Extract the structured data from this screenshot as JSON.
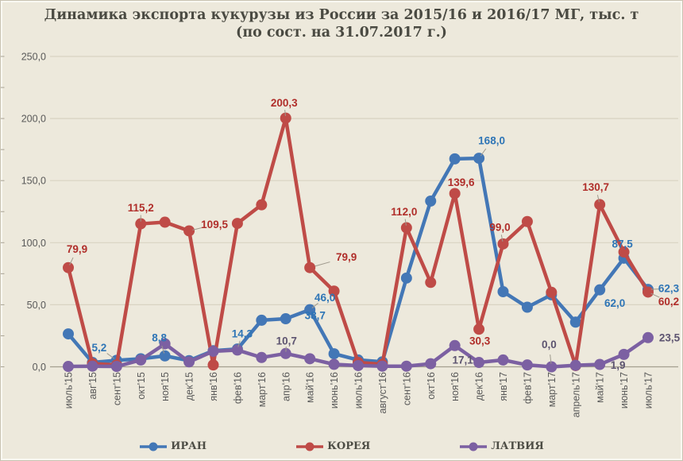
{
  "title": {
    "line1": "Динамика экспорта кукурузы из России за  2015/16 и 2016/17 МГ, тыс. т",
    "line2": "(по сост.  на 31.07.2017 г.)"
  },
  "colors": {
    "background": "#EDE9DC",
    "gridline": "#d8d3c2",
    "axis_line": "#a49f90",
    "tick_text": "#595959",
    "title_text": "#4a4a42",
    "leader_line": "#9e998c"
  },
  "chart_data": {
    "type": "line",
    "title": "Динамика экспорта кукурузы из России за 2015/16 и 2016/17 МГ, тыс. т (по сост. на 31.07.2017 г.)",
    "xlabel": "",
    "ylabel": "",
    "ylim": [
      0,
      250
    ],
    "ytick_step": 50,
    "yticks": [
      "0,0",
      "50,0",
      "100,0",
      "150,0",
      "200,0",
      "250,0"
    ],
    "grid": true,
    "legend_position": "bottom",
    "categories": [
      "июль'15",
      "авг'15",
      "сент'15",
      "окт'15",
      "ноя'15",
      "дек'15",
      "янв'16",
      "фев'16",
      "март'16",
      "апр'16",
      "май'16",
      "июнь'16",
      "июль'16",
      "август'16",
      "сент'16",
      "окт'16",
      "ноя'16",
      "дек'16",
      "янв'17",
      "фев'17",
      "март'17",
      "апрель'17",
      "май'17",
      "июнь'17",
      "июль'17"
    ],
    "series": [
      {
        "id": "iran",
        "name": "ИРАН",
        "color": "#4377B6",
        "label_color": "#2E75B6",
        "values": [
          26.5,
          3.5,
          5.2,
          6.5,
          8.8,
          5.0,
          13.0,
          14.3,
          37.5,
          38.7,
          46.0,
          10.5,
          5.5,
          4.0,
          71.5,
          133.5,
          167.5,
          168.0,
          60.5,
          48.0,
          58.0,
          36.0,
          62.0,
          87.5,
          62.3
        ],
        "labels": [
          {
            "i": 2,
            "text": "5,2",
            "dx": -22,
            "dy": -16,
            "leader": true
          },
          {
            "i": 4,
            "text": "8,8",
            "dx": -7,
            "dy": -23,
            "leader": true
          },
          {
            "i": 7,
            "text": "14,3",
            "dx": 6,
            "dy": -19,
            "leader": true
          },
          {
            "i": 9,
            "text": "38,7",
            "dx": 37,
            "dy": -4,
            "leader": false
          },
          {
            "i": 10,
            "text": "46,0",
            "dx": 19,
            "dy": -15,
            "leader": true
          },
          {
            "i": 17,
            "text": "168,0",
            "dx": 16,
            "dy": -22,
            "leader": true
          },
          {
            "i": 22,
            "text": "62,0",
            "dx": 19,
            "dy": 17,
            "leader": false
          },
          {
            "i": 23,
            "text": "87,5",
            "dx": -2,
            "dy": -18,
            "leader": false
          },
          {
            "i": 24,
            "text": "62,3",
            "dx": 26,
            "dy": -1,
            "leader": true
          }
        ]
      },
      {
        "id": "korea",
        "name": "КОРЕЯ",
        "color": "#BF4B47",
        "label_color": "#B02E2A",
        "values": [
          79.9,
          2.5,
          1.5,
          115.2,
          116.5,
          109.5,
          1.5,
          115.5,
          130.5,
          200.3,
          79.9,
          61.0,
          3.5,
          2.0,
          112.0,
          68.0,
          139.6,
          30.3,
          99.0,
          117.0,
          60.0,
          1.0,
          130.7,
          92.5,
          60.2
        ],
        "labels": [
          {
            "i": 0,
            "text": "79,9",
            "dx": 11,
            "dy": -23,
            "leader": true
          },
          {
            "i": 3,
            "text": "115,2",
            "dx": 0,
            "dy": -20,
            "leader": true
          },
          {
            "i": 5,
            "text": "109,5",
            "dx": 32,
            "dy": -8,
            "leader": true
          },
          {
            "i": 9,
            "text": "200,3",
            "dx": -2,
            "dy": -19,
            "leader": true
          },
          {
            "i": 10,
            "text": "79,9",
            "dx": 46,
            "dy": -13,
            "leader": true
          },
          {
            "i": 14,
            "text": "112,0",
            "dx": -3,
            "dy": -20,
            "leader": true
          },
          {
            "i": 16,
            "text": "139,6",
            "dx": 8,
            "dy": -14,
            "leader": false
          },
          {
            "i": 17,
            "text": "30,3",
            "dx": 1,
            "dy": 15,
            "leader": false
          },
          {
            "i": 18,
            "text": "99,0",
            "dx": -4,
            "dy": -21,
            "leader": true
          },
          {
            "i": 22,
            "text": "130,7",
            "dx": -5,
            "dy": -22,
            "leader": true
          },
          {
            "i": 24,
            "text": "60,2",
            "dx": 26,
            "dy": 12,
            "leader": true
          }
        ]
      },
      {
        "id": "latvia",
        "name": "ЛАТВИЯ",
        "color": "#7C60A2",
        "label_color": "#5D5470",
        "values": [
          0.3,
          0.5,
          0.3,
          5.5,
          18.5,
          4.0,
          12.5,
          13.5,
          7.5,
          10.7,
          6.5,
          2.0,
          1.0,
          0.5,
          0.5,
          2.5,
          17.1,
          3.5,
          5.5,
          1.5,
          0.0,
          1.2,
          1.9,
          10.0,
          23.5
        ],
        "labels": [
          {
            "i": 9,
            "text": "10,7",
            "dx": 1,
            "dy": -16,
            "leader": true
          },
          {
            "i": 16,
            "text": "17,1",
            "dx": 10,
            "dy": 18,
            "leader": false
          },
          {
            "i": 20,
            "text": "0,0",
            "dx": -3,
            "dy": -28,
            "leader": true
          },
          {
            "i": 22,
            "text": "1,9",
            "dx": 23,
            "dy": 1,
            "leader": false
          },
          {
            "i": 24,
            "text": "23,5",
            "dx": 27,
            "dy": 0,
            "leader": false
          }
        ]
      }
    ]
  }
}
